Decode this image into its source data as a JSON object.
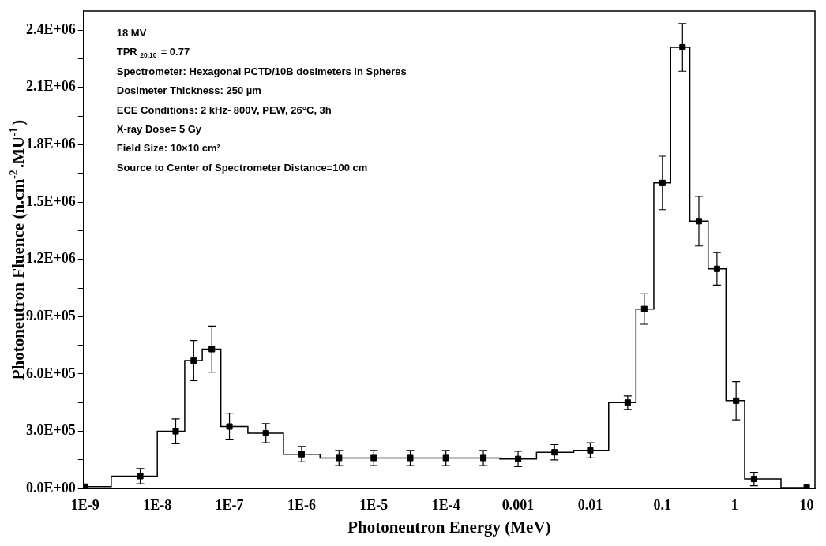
{
  "chart_data": {
    "type": "scatter",
    "xlabel": "Photoneutron Energy (MeV)",
    "ylabel": "Photoneutron Fluence (n.cm$^{-2}$.MU$^{-1}$)",
    "log": "x",
    "grid": false,
    "legend": false,
    "marker": "square",
    "line_style": "solid",
    "xlim": [
      9.5e-10,
      13
    ],
    "ylim": [
      0,
      2500000
    ],
    "xticks": [
      {
        "value": 1e-09,
        "label": "1E-9"
      },
      {
        "value": 1e-08,
        "label": "1E-8"
      },
      {
        "value": 1e-07,
        "label": "1E-7"
      },
      {
        "value": 1e-06,
        "label": "1E-6"
      },
      {
        "value": 1e-05,
        "label": "1E-5"
      },
      {
        "value": 0.0001,
        "label": "1E-4"
      },
      {
        "value": 0.001,
        "label": "0.001"
      },
      {
        "value": 0.01,
        "label": "0.01"
      },
      {
        "value": 0.1,
        "label": "0.1"
      },
      {
        "value": 1,
        "label": "1"
      },
      {
        "value": 10,
        "label": "10"
      }
    ],
    "yticks": [
      {
        "value": 0,
        "label": "0.0E+00"
      },
      {
        "value": 150000,
        "label": null
      },
      {
        "value": 300000,
        "label": "3.0E+05"
      },
      {
        "value": 450000,
        "label": null
      },
      {
        "value": 600000,
        "label": "6.0E+05"
      },
      {
        "value": 750000,
        "label": null
      },
      {
        "value": 900000,
        "label": "9.0E+05"
      },
      {
        "value": 1050000,
        "label": null
      },
      {
        "value": 1200000,
        "label": "1.2E+06"
      },
      {
        "value": 1350000,
        "label": null
      },
      {
        "value": 1500000,
        "label": "1.5E+06"
      },
      {
        "value": 1650000,
        "label": null
      },
      {
        "value": 1800000,
        "label": "1.8E+06"
      },
      {
        "value": 1950000,
        "label": null
      },
      {
        "value": 2100000,
        "label": "2.1E+06"
      },
      {
        "value": 2250000,
        "label": null
      },
      {
        "value": 2400000,
        "label": "2.4E+06"
      }
    ],
    "annotations": [
      "18 MV",
      "TPR $_{20,10}$ = 0.77",
      "Spectrometer: Hexagonal PCTD/10B dosimeters in Spheres",
      "Dosimeter Thickness: 250 µm",
      "ECE Conditions: 2 kHz- 800V, PEW, 26°C, 3h",
      "X-ray Dose= 5 Gy",
      "Field Size: 10×10 cm²",
      "Source to Center of Spectrometer Distance=100 cm"
    ],
    "series": [
      {
        "type": "step",
        "marker": "none",
        "color": "#000000",
        "x": [
          1e-09,
          2.3e-09,
          1e-08,
          2.4e-08,
          4.2e-08,
          7.6e-08,
          1.8e-07,
          5.6e-07,
          1.8e-06,
          0.00056,
          0.0018,
          0.0059,
          0.018,
          0.043,
          0.076,
          0.13,
          0.24,
          0.43,
          0.76,
          1.38,
          4.4,
          10
        ],
        "values": [
          10000,
          65000,
          300000,
          670000,
          730000,
          325000,
          290000,
          180000,
          160000,
          155000,
          190000,
          200000,
          450000,
          940000,
          1600000,
          2310000,
          1400000,
          1150000,
          460000,
          50000,
          5000,
          5000
        ]
      },
      {
        "color": "#000000",
        "x": [
          1e-09,
          5.8e-09,
          1.8e-08,
          3.2e-08,
          5.7e-08,
          1e-07,
          3.2e-07,
          1e-06,
          3.3e-06,
          1e-05,
          3.2e-05,
          0.0001,
          0.00033,
          0.001,
          0.0032,
          0.01,
          0.033,
          0.056,
          0.1,
          0.19,
          0.32,
          0.57,
          1.05,
          1.86,
          10
        ],
        "values": [
          10000,
          65000,
          300000,
          670000,
          730000,
          325000,
          290000,
          180000,
          160000,
          160000,
          160000,
          160000,
          160000,
          155000,
          190000,
          200000,
          450000,
          940000,
          1600000,
          2310000,
          1400000,
          1150000,
          460000,
          50000,
          5000
        ],
        "errors": [
          null,
          40000,
          65000,
          105000,
          120000,
          70000,
          50000,
          40000,
          40000,
          40000,
          40000,
          40000,
          40000,
          40000,
          40000,
          40000,
          35000,
          80000,
          140000,
          125000,
          130000,
          85000,
          100000,
          35000,
          null
        ]
      }
    ]
  }
}
